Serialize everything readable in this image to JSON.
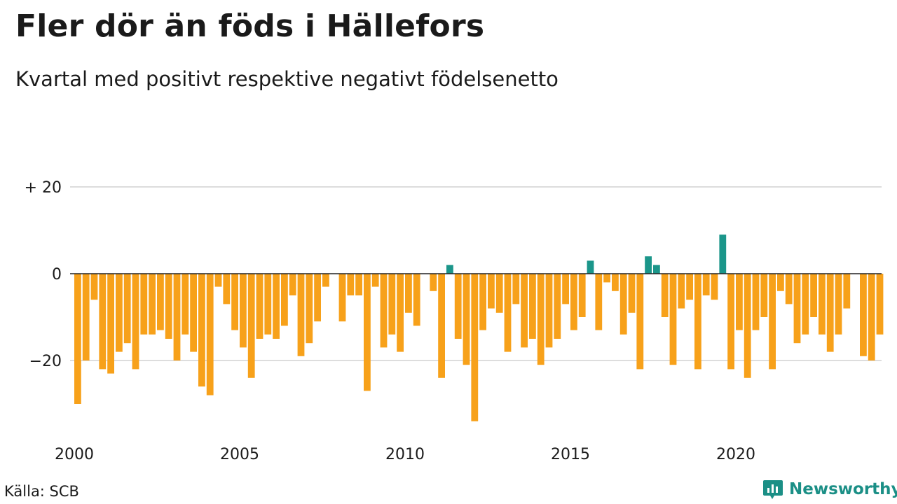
{
  "title": "Fler dör än föds i Hällefors",
  "subtitle": "Kvartal med positivt respektive negativt födelsenetto",
  "source": "Källa: SCB",
  "brand": {
    "name": "Newsworthy",
    "icon": "bar-chart-bubble-icon",
    "color": "#1b8f86"
  },
  "colors": {
    "positive": "#1b968a",
    "negative": "#f7a11a",
    "grid": "#dddddd",
    "zero_line": "#222222"
  },
  "chart_data": {
    "type": "bar",
    "title": "Fler dör än föds i Hällefors",
    "subtitle": "Kvartal med positivt respektive negativt födelsenetto",
    "xlabel": "",
    "ylabel": "",
    "x_start_year": 2000,
    "periods_per_year": 4,
    "ylim": [
      -36,
      24
    ],
    "yticks": [
      20,
      0,
      -20
    ],
    "ytick_labels": [
      "+ 20",
      "0",
      "−20"
    ],
    "xticks": [
      2000,
      2005,
      2010,
      2015,
      2020
    ],
    "grid": true,
    "legend": "none",
    "values": [
      -30,
      -20,
      -6,
      -22,
      -23,
      -18,
      -16,
      -22,
      -14,
      -14,
      -13,
      -15,
      -20,
      -14,
      -18,
      -26,
      -28,
      -3,
      -7,
      -13,
      -17,
      -24,
      -15,
      -14,
      -15,
      -12,
      -5,
      -19,
      -16,
      -11,
      -3,
      0,
      -11,
      -5,
      -5,
      -27,
      -3,
      -17,
      -14,
      -18,
      -9,
      -12,
      0,
      -4,
      -24,
      2,
      -15,
      -21,
      -34,
      -13,
      -8,
      -9,
      -18,
      -7,
      -17,
      -15,
      -21,
      -17,
      -15,
      -7,
      -13,
      -10,
      3,
      -13,
      -2,
      -4,
      -14,
      -9,
      -22,
      4,
      2,
      -10,
      -21,
      -8,
      -6,
      -22,
      -5,
      -6,
      9,
      -22,
      -13,
      -24,
      -13,
      -10,
      -22,
      -4,
      -7,
      -16,
      -14,
      -10,
      -14,
      -18,
      -14,
      -8,
      0,
      -19,
      -20,
      -14
    ]
  }
}
